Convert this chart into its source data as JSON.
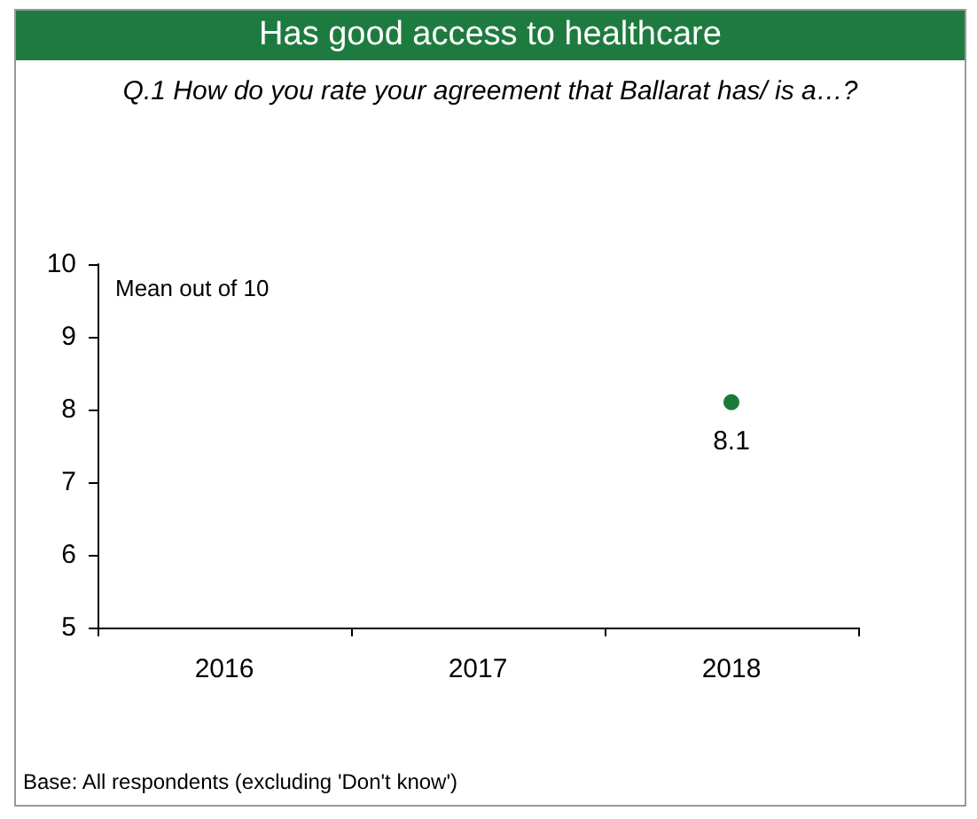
{
  "chart_data": {
    "type": "scatter",
    "title": "Has good access to healthcare",
    "subtitle": "Q.1 How do you rate your agreement that Ballarat has/ is a…?",
    "categories": [
      "2016",
      "2017",
      "2018"
    ],
    "series": [
      {
        "color": "#1a7a3a",
        "values": [
          null,
          null,
          8.1
        ]
      }
    ],
    "ylim": [
      5,
      10
    ],
    "yticks": [
      5,
      6,
      7,
      8,
      9,
      10
    ],
    "grid": false,
    "marker": "circle",
    "data_labels": true,
    "annotations": [
      "Mean out of 10",
      "Base: All respondents (excluding 'Don't know')"
    ]
  }
}
